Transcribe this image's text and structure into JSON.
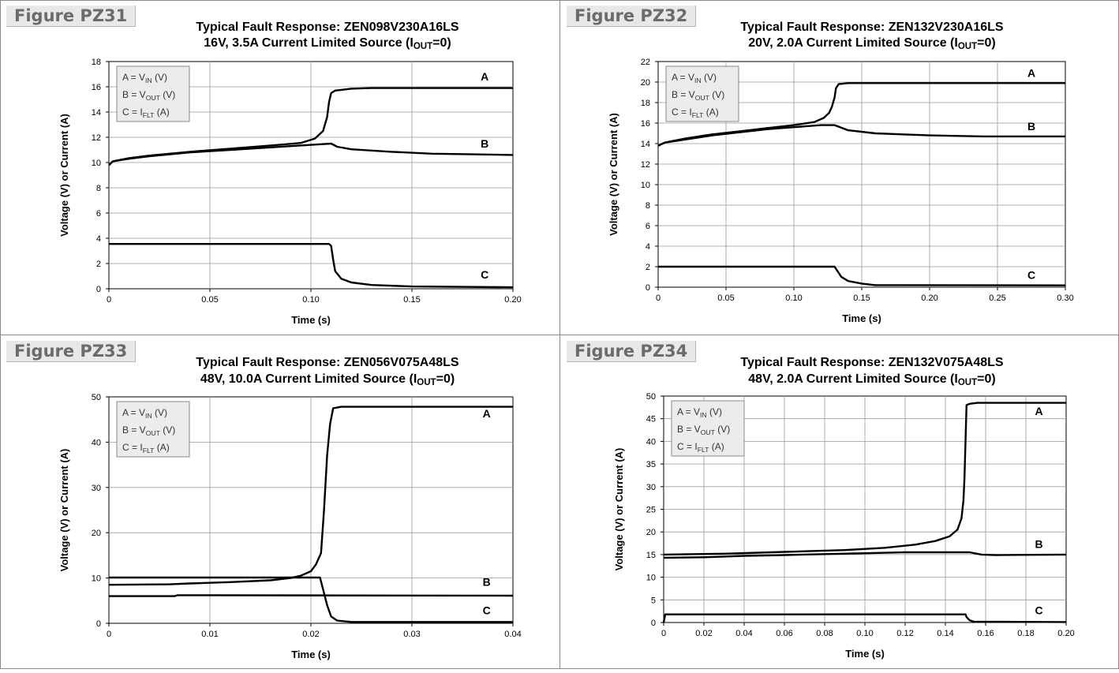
{
  "chart_data": [
    {
      "figure_label": "Figure PZ31",
      "type": "line",
      "title": "Typical Fault Response: ZEN098V230A16LS",
      "subtitle": {
        "pre": "16V, 3.5A Current Limited Source (I",
        "sub": "OUT",
        "post": "=0)"
      },
      "xlabel": "Time (s)",
      "ylabel": "Voltage (V) or Current (A)",
      "xlim": [
        0,
        0.2
      ],
      "ylim": [
        0,
        18
      ],
      "xticks": [
        0,
        0.05,
        0.1,
        0.15,
        0.2
      ],
      "xtick_labels": [
        "0",
        "0.05",
        "0.10",
        "0.15",
        "0.20"
      ],
      "yticks": [
        0,
        2,
        4,
        6,
        8,
        10,
        12,
        14,
        16,
        18
      ],
      "ytick_labels": [
        "0",
        "2",
        "4",
        "6",
        "8",
        "10",
        "12",
        "14",
        "16",
        "18"
      ],
      "grid": true,
      "legend": [
        {
          "pre": "A = V",
          "sub": "IN",
          "post": " (V)"
        },
        {
          "pre": "B = V",
          "sub": "OUT",
          "post": " (V)"
        },
        {
          "pre": "C = I",
          "sub": "FLT",
          "post": " (A)"
        }
      ],
      "series": [
        {
          "name": "A",
          "points": [
            [
              0,
              9.8
            ],
            [
              0.002,
              10.1
            ],
            [
              0.01,
              10.35
            ],
            [
              0.02,
              10.55
            ],
            [
              0.04,
              10.85
            ],
            [
              0.06,
              11.1
            ],
            [
              0.08,
              11.35
            ],
            [
              0.095,
              11.55
            ],
            [
              0.102,
              11.9
            ],
            [
              0.106,
              12.5
            ],
            [
              0.108,
              13.6
            ],
            [
              0.109,
              14.8
            ],
            [
              0.11,
              15.5
            ],
            [
              0.112,
              15.7
            ],
            [
              0.12,
              15.85
            ],
            [
              0.13,
              15.9
            ],
            [
              0.2,
              15.9
            ]
          ]
        },
        {
          "name": "B",
          "points": [
            [
              0,
              9.8
            ],
            [
              0.002,
              10.1
            ],
            [
              0.01,
              10.3
            ],
            [
              0.02,
              10.5
            ],
            [
              0.04,
              10.8
            ],
            [
              0.06,
              11.0
            ],
            [
              0.08,
              11.2
            ],
            [
              0.1,
              11.4
            ],
            [
              0.105,
              11.45
            ],
            [
              0.11,
              11.5
            ],
            [
              0.113,
              11.25
            ],
            [
              0.12,
              11.05
            ],
            [
              0.14,
              10.85
            ],
            [
              0.16,
              10.7
            ],
            [
              0.18,
              10.65
            ],
            [
              0.2,
              10.6
            ]
          ]
        },
        {
          "name": "C",
          "points": [
            [
              0,
              3.55
            ],
            [
              0.109,
              3.55
            ],
            [
              0.11,
              3.4
            ],
            [
              0.111,
              2.3
            ],
            [
              0.112,
              1.4
            ],
            [
              0.115,
              0.8
            ],
            [
              0.12,
              0.5
            ],
            [
              0.13,
              0.3
            ],
            [
              0.15,
              0.18
            ],
            [
              0.2,
              0.12
            ]
          ]
        }
      ],
      "annotations": [
        {
          "text": "A",
          "x": 0.186,
          "y": 16.5
        },
        {
          "text": "B",
          "x": 0.186,
          "y": 11.2
        },
        {
          "text": "C",
          "x": 0.186,
          "y": 0.8
        }
      ]
    },
    {
      "figure_label": "Figure PZ32",
      "type": "line",
      "title": "Typical Fault Response: ZEN132V230A16LS",
      "subtitle": {
        "pre": "20V, 2.0A Current Limited Source (I",
        "sub": "OUT",
        "post": "=0)"
      },
      "xlabel": "Time (s)",
      "ylabel": "Voltage (V) or Current (A)",
      "xlim": [
        0,
        0.3
      ],
      "ylim": [
        0,
        22
      ],
      "xticks": [
        0,
        0.05,
        0.1,
        0.15,
        0.2,
        0.25,
        0.3
      ],
      "xtick_labels": [
        "0",
        "0.05",
        "0.10",
        "0.15",
        "0.20",
        "0.25",
        "0.30"
      ],
      "yticks": [
        0,
        2,
        4,
        6,
        8,
        10,
        12,
        14,
        16,
        18,
        20,
        22
      ],
      "ytick_labels": [
        "0",
        "2",
        "4",
        "6",
        "8",
        "10",
        "12",
        "14",
        "16",
        "18",
        "20",
        "22"
      ],
      "grid": true,
      "legend": [
        {
          "pre": "A = V",
          "sub": "IN",
          "post": " (V)"
        },
        {
          "pre": "B = V",
          "sub": "OUT",
          "post": " (V)"
        },
        {
          "pre": "C = I",
          "sub": "FLT",
          "post": " (A)"
        }
      ],
      "series": [
        {
          "name": "A",
          "points": [
            [
              0,
              13.8
            ],
            [
              0.005,
              14.1
            ],
            [
              0.02,
              14.5
            ],
            [
              0.04,
              14.9
            ],
            [
              0.06,
              15.2
            ],
            [
              0.08,
              15.5
            ],
            [
              0.1,
              15.8
            ],
            [
              0.115,
              16.1
            ],
            [
              0.122,
              16.5
            ],
            [
              0.126,
              17.0
            ],
            [
              0.128,
              17.6
            ],
            [
              0.13,
              18.5
            ],
            [
              0.131,
              19.4
            ],
            [
              0.133,
              19.8
            ],
            [
              0.14,
              19.9
            ],
            [
              0.3,
              19.9
            ]
          ]
        },
        {
          "name": "B",
          "points": [
            [
              0,
              13.8
            ],
            [
              0.005,
              14.1
            ],
            [
              0.02,
              14.4
            ],
            [
              0.04,
              14.8
            ],
            [
              0.06,
              15.1
            ],
            [
              0.08,
              15.4
            ],
            [
              0.1,
              15.6
            ],
            [
              0.12,
              15.8
            ],
            [
              0.13,
              15.8
            ],
            [
              0.14,
              15.3
            ],
            [
              0.16,
              15.0
            ],
            [
              0.18,
              14.9
            ],
            [
              0.2,
              14.8
            ],
            [
              0.24,
              14.7
            ],
            [
              0.3,
              14.7
            ]
          ]
        },
        {
          "name": "C",
          "points": [
            [
              0,
              2.0
            ],
            [
              0.13,
              2.0
            ],
            [
              0.132,
              1.6
            ],
            [
              0.135,
              1.0
            ],
            [
              0.14,
              0.6
            ],
            [
              0.15,
              0.35
            ],
            [
              0.16,
              0.2
            ],
            [
              0.3,
              0.18
            ]
          ]
        }
      ],
      "annotations": [
        {
          "text": "A",
          "x": 0.275,
          "y": 20.5
        },
        {
          "text": "B",
          "x": 0.275,
          "y": 15.3
        },
        {
          "text": "C",
          "x": 0.275,
          "y": 0.8
        }
      ]
    },
    {
      "figure_label": "Figure PZ33",
      "type": "line",
      "title": "Typical Fault Response: ZEN056V075A48LS",
      "subtitle": {
        "pre": "48V, 10.0A Current Limited Source (I",
        "sub": "OUT",
        "post": "=0)"
      },
      "xlabel": "Time (s)",
      "ylabel": "Voltage (V) or Current (A)",
      "xlim": [
        0,
        0.04
      ],
      "ylim": [
        0,
        50
      ],
      "xticks": [
        0,
        0.01,
        0.02,
        0.03,
        0.04
      ],
      "xtick_labels": [
        "0",
        "0.01",
        "0.02",
        "0.03",
        "0.04"
      ],
      "yticks": [
        0,
        10,
        20,
        30,
        40,
        50
      ],
      "ytick_labels": [
        "0",
        "10",
        "20",
        "30",
        "40",
        "50"
      ],
      "grid": true,
      "legend": [
        {
          "pre": "A = V",
          "sub": "IN",
          "post": " (V)"
        },
        {
          "pre": "B = V",
          "sub": "OUT",
          "post": " (V)"
        },
        {
          "pre": "C = I",
          "sub": "FLT",
          "post": " (A)"
        }
      ],
      "series": [
        {
          "name": "A",
          "points": [
            [
              0,
              8.5
            ],
            [
              0.006,
              8.6
            ],
            [
              0.008,
              8.8
            ],
            [
              0.012,
              9.1
            ],
            [
              0.016,
              9.5
            ],
            [
              0.018,
              10.0
            ],
            [
              0.019,
              10.5
            ],
            [
              0.02,
              11.5
            ],
            [
              0.0205,
              13.0
            ],
            [
              0.021,
              15.5
            ],
            [
              0.0213,
              25
            ],
            [
              0.0216,
              37
            ],
            [
              0.0219,
              44
            ],
            [
              0.0222,
              47.5
            ],
            [
              0.023,
              47.8
            ],
            [
              0.04,
              47.8
            ]
          ]
        },
        {
          "name": "B",
          "points": [
            [
              0,
              6.0
            ],
            [
              0.0065,
              6.0
            ],
            [
              0.0068,
              6.2
            ],
            [
              0.04,
              6.1
            ]
          ]
        },
        {
          "name": "C",
          "points": [
            [
              0,
              10.1
            ],
            [
              0.0209,
              10.1
            ],
            [
              0.0212,
              7.5
            ],
            [
              0.0216,
              4.0
            ],
            [
              0.022,
              1.5
            ],
            [
              0.0226,
              0.6
            ],
            [
              0.024,
              0.3
            ],
            [
              0.04,
              0.3
            ]
          ]
        }
      ],
      "annotations": [
        {
          "text": "A",
          "x": 0.0374,
          "y": 45.5
        },
        {
          "text": "B",
          "x": 0.0374,
          "y": 8.3
        },
        {
          "text": "C",
          "x": 0.0374,
          "y": 2.0
        }
      ]
    },
    {
      "figure_label": "Figure PZ34",
      "type": "line",
      "title": "Typical Fault Response: ZEN132V075A48LS",
      "subtitle": {
        "pre": "48V, 2.0A Current Limited Source (I",
        "sub": "OUT",
        "post": "=0)"
      },
      "xlabel": "Time (s)",
      "ylabel": "Voltage (V) or Current (A)",
      "xlim": [
        0,
        0.2
      ],
      "ylim": [
        0,
        50
      ],
      "xticks": [
        0,
        0.02,
        0.04,
        0.06,
        0.08,
        0.1,
        0.12,
        0.14,
        0.16,
        0.18,
        0.2
      ],
      "xtick_labels": [
        "0",
        "0.02",
        "0.04",
        "0.06",
        "0.08",
        "0.10",
        "0.12",
        "0.14",
        "0.16",
        "0.18",
        "0.20"
      ],
      "yticks": [
        0,
        5,
        10,
        15,
        20,
        25,
        30,
        35,
        40,
        45,
        50
      ],
      "ytick_labels": [
        "0",
        "5",
        "10",
        "15",
        "20",
        "25",
        "30",
        "35",
        "40",
        "45",
        "50"
      ],
      "grid": true,
      "legend": [
        {
          "pre": "A = V",
          "sub": "IN",
          "post": " (V)"
        },
        {
          "pre": "B = V",
          "sub": "OUT",
          "post": " (V)"
        },
        {
          "pre": "C = I",
          "sub": "FLT",
          "post": " (A)"
        }
      ],
      "series": [
        {
          "name": "A",
          "points": [
            [
              0,
              15.0
            ],
            [
              0.03,
              15.2
            ],
            [
              0.06,
              15.6
            ],
            [
              0.09,
              16.0
            ],
            [
              0.11,
              16.5
            ],
            [
              0.125,
              17.2
            ],
            [
              0.135,
              18.0
            ],
            [
              0.142,
              19.0
            ],
            [
              0.146,
              20.5
            ],
            [
              0.148,
              23
            ],
            [
              0.149,
              27
            ],
            [
              0.1495,
              32
            ],
            [
              0.15,
              40
            ],
            [
              0.1505,
              48.0
            ],
            [
              0.152,
              48.3
            ],
            [
              0.156,
              48.5
            ],
            [
              0.2,
              48.5
            ]
          ]
        },
        {
          "name": "B",
          "points": [
            [
              0,
              14.3
            ],
            [
              0.02,
              14.4
            ],
            [
              0.04,
              14.7
            ],
            [
              0.06,
              14.9
            ],
            [
              0.08,
              15.1
            ],
            [
              0.1,
              15.3
            ],
            [
              0.12,
              15.5
            ],
            [
              0.14,
              15.5
            ],
            [
              0.152,
              15.5
            ],
            [
              0.158,
              15.0
            ],
            [
              0.165,
              14.9
            ],
            [
              0.2,
              15.0
            ]
          ]
        },
        {
          "name": "C",
          "points": [
            [
              0,
              0
            ],
            [
              0.0008,
              1.8
            ],
            [
              0.15,
              1.8
            ],
            [
              0.1505,
              1.2
            ],
            [
              0.152,
              0.5
            ],
            [
              0.154,
              0.2
            ],
            [
              0.2,
              0.1
            ]
          ]
        }
      ],
      "annotations": [
        {
          "text": "A",
          "x": 0.1865,
          "y": 45.8
        },
        {
          "text": "B",
          "x": 0.1865,
          "y": 16.5
        },
        {
          "text": "C",
          "x": 0.1865,
          "y": 1.8
        }
      ]
    }
  ]
}
